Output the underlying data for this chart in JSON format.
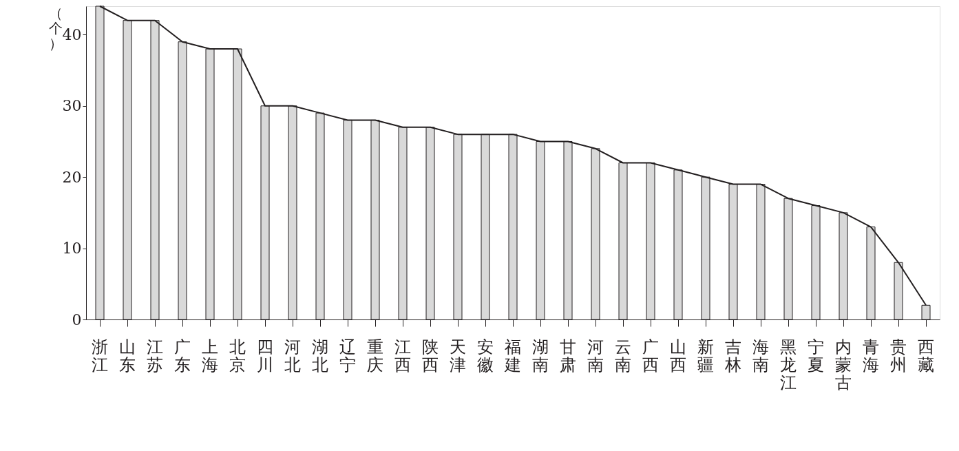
{
  "chart_data": {
    "type": "bar",
    "ylabel": "（个）",
    "categories": [
      "浙江",
      "山东",
      "江苏",
      "广东",
      "上海",
      "北京",
      "四川",
      "河北",
      "湖北",
      "辽宁",
      "重庆",
      "江西",
      "陕西",
      "天津",
      "安徽",
      "福建",
      "湖南",
      "甘肃",
      "河南",
      "云南",
      "广西",
      "山西",
      "新疆",
      "吉林",
      "海南",
      "黑龙江",
      "宁夏",
      "内蒙古",
      "青海",
      "贵州",
      "西藏"
    ],
    "series": [
      {
        "color": "#d9d9d9",
        "values": [
          44,
          42,
          42,
          39,
          38,
          38,
          30,
          30,
          29,
          28,
          28,
          27,
          27,
          26,
          26,
          26,
          25,
          25,
          24,
          22,
          22,
          21,
          20,
          19,
          19,
          17,
          16,
          15,
          13,
          8,
          2
        ]
      },
      {
        "type": "line",
        "color": "#231f20",
        "values": [
          44,
          42,
          42,
          39,
          38,
          38,
          30,
          30,
          29,
          28,
          28,
          27,
          27,
          26,
          26,
          26,
          25,
          25,
          24,
          22,
          22,
          21,
          20,
          19,
          19,
          17,
          16,
          15,
          13,
          8,
          2
        ]
      }
    ],
    "ylim": [
      0,
      44
    ],
    "yticks": [
      0,
      10,
      20,
      30,
      40
    ],
    "grid": false
  }
}
